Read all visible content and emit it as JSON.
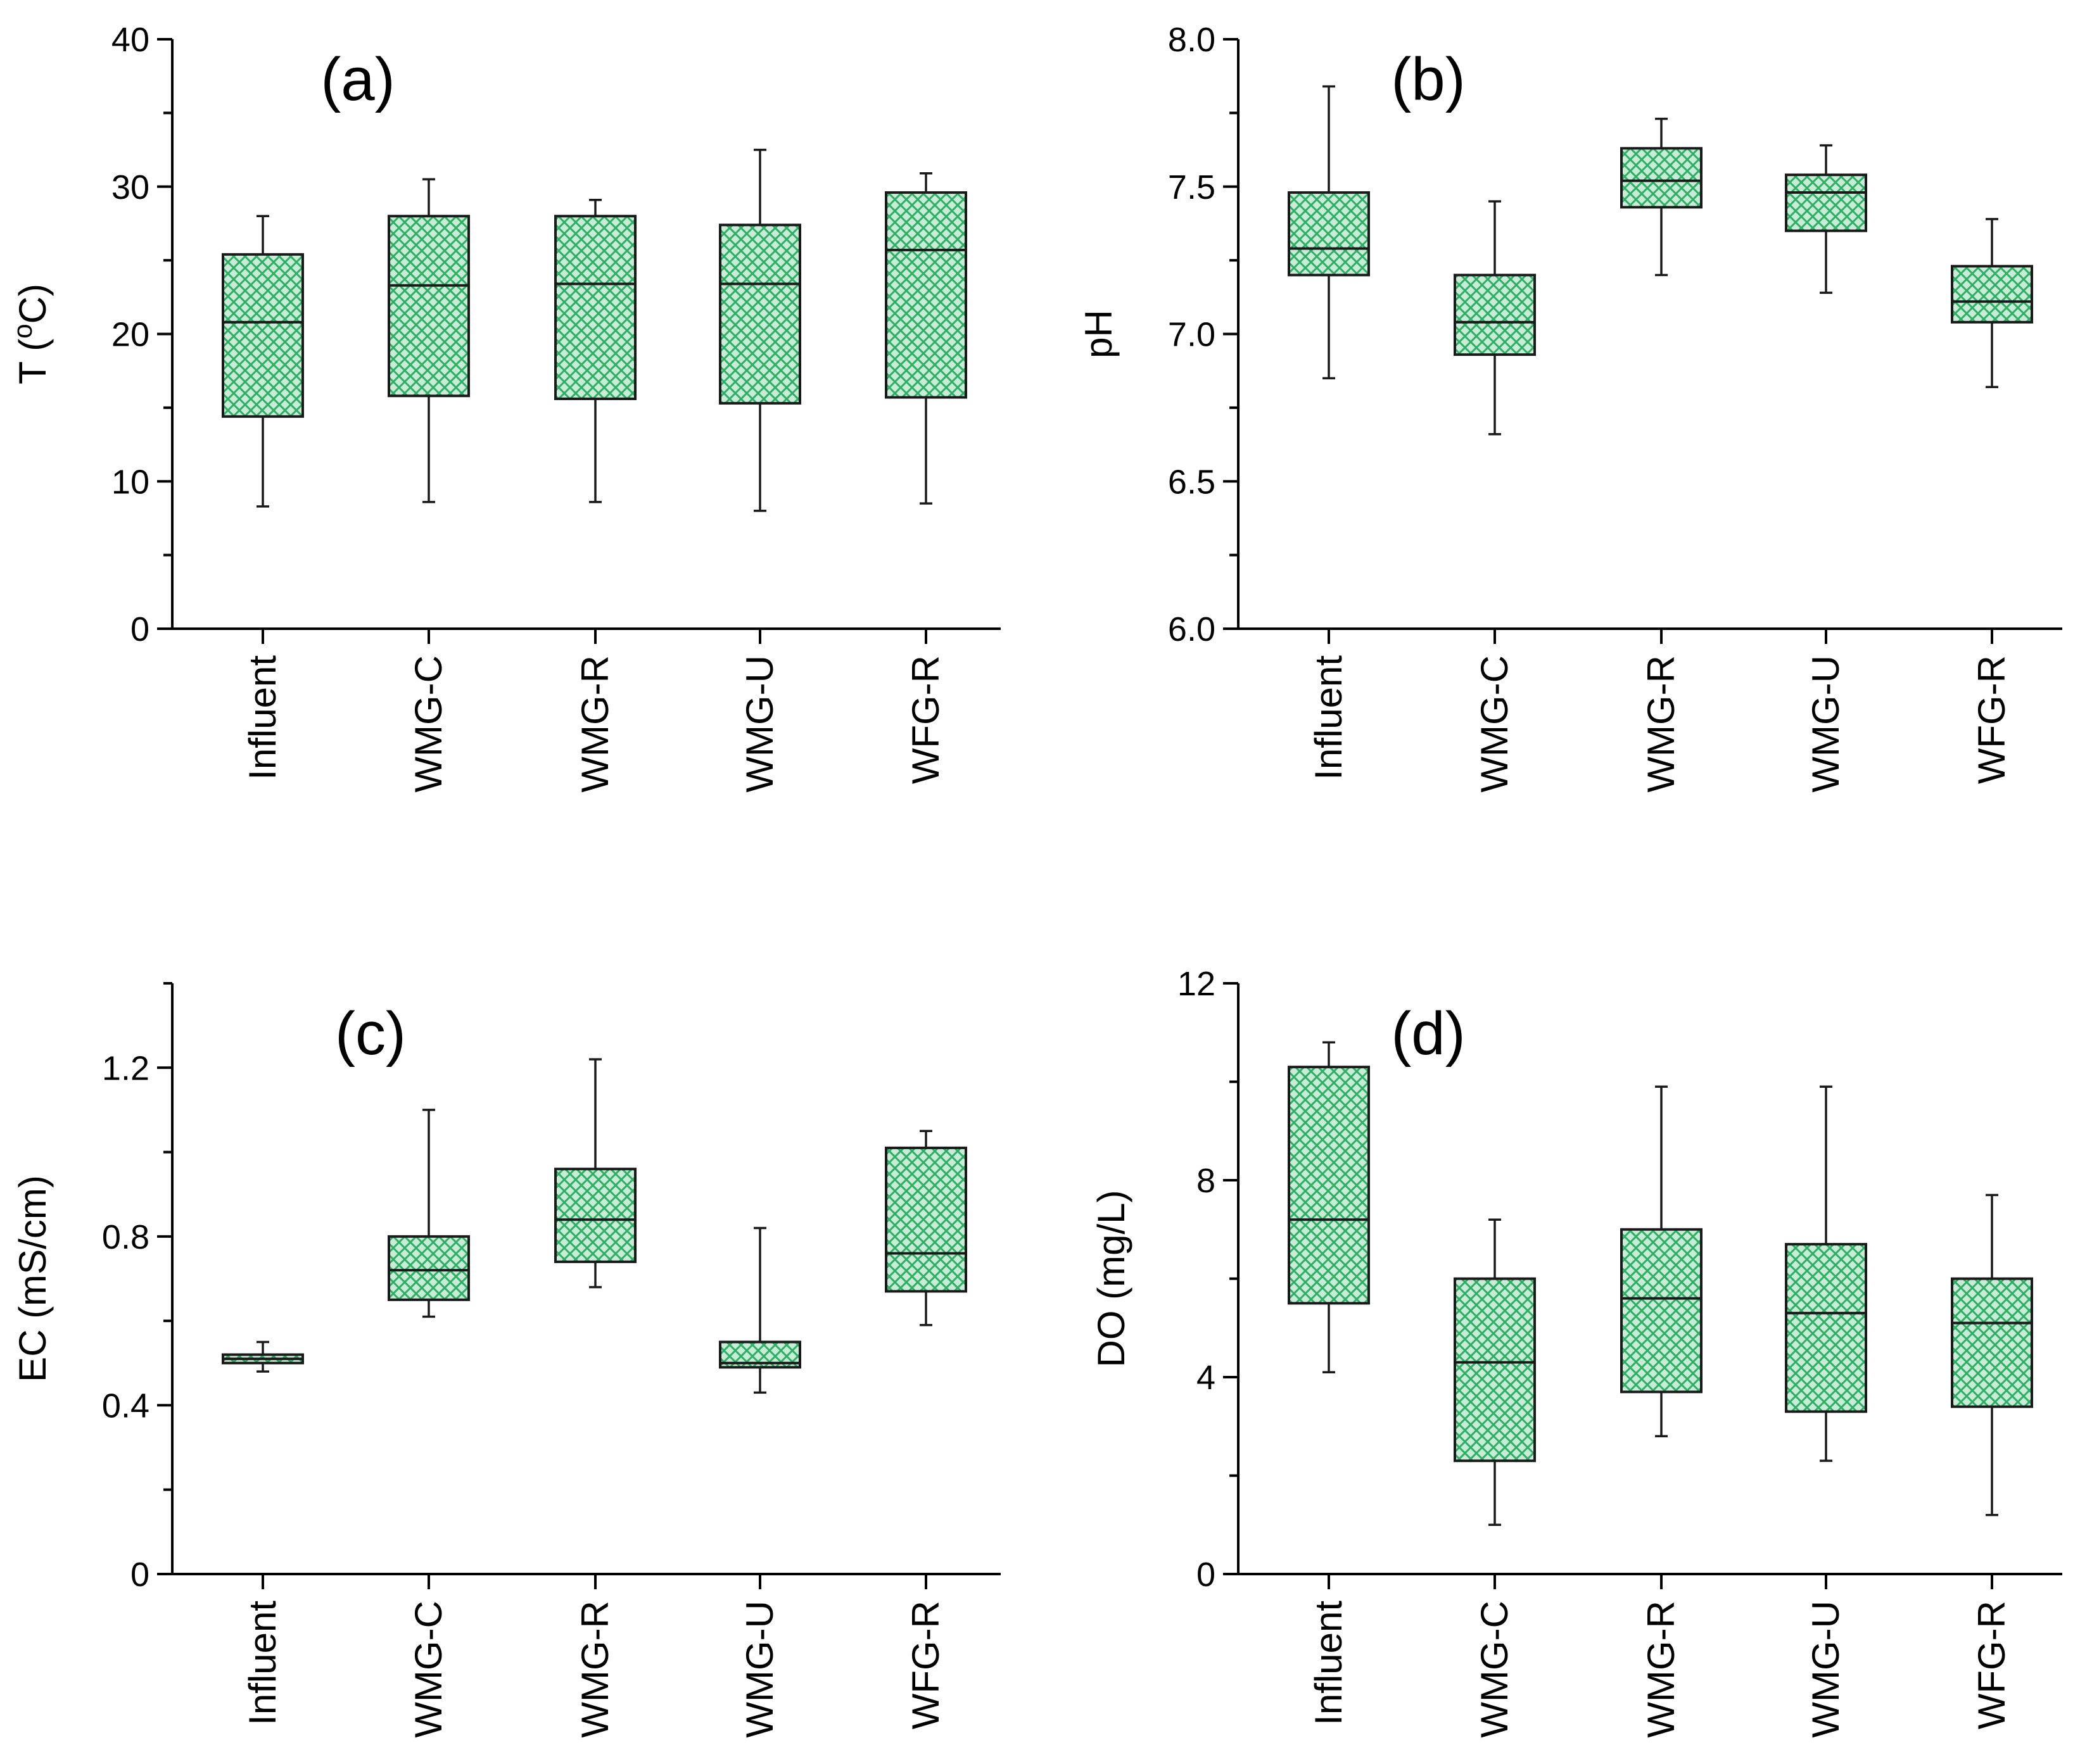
{
  "figure": {
    "box_fill_color": "#c8ecd6",
    "hatch_color": "#2fae66",
    "line_color": "#1a1a1a"
  },
  "chart_data": [
    {
      "type": "box",
      "panel": "a",
      "title": "(a)",
      "ylabel": "T (oC)",
      "ylabel_base": "T (",
      "ylabel_sup": "o",
      "ylabel_tail": "C)",
      "ylim": [
        0,
        40
      ],
      "yticks": [
        0,
        10,
        20,
        30,
        40
      ],
      "ytick_labels": [
        "0",
        "10",
        "20",
        "30",
        "40"
      ],
      "minor_step": 5,
      "categories": [
        "Influent",
        "WMG-C",
        "WMG-R",
        "WMG-U",
        "WFG-R"
      ],
      "boxes": [
        {
          "min": 8.3,
          "q1": 14.4,
          "median": 20.8,
          "q3": 25.4,
          "max": 28.0
        },
        {
          "min": 8.6,
          "q1": 15.8,
          "median": 23.3,
          "q3": 28.0,
          "max": 30.5
        },
        {
          "min": 8.6,
          "q1": 15.6,
          "median": 23.4,
          "q3": 28.0,
          "max": 29.1
        },
        {
          "min": 8.0,
          "q1": 15.3,
          "median": 23.4,
          "q3": 27.4,
          "max": 32.5
        },
        {
          "min": 8.5,
          "q1": 15.7,
          "median": 25.7,
          "q3": 29.6,
          "max": 30.9
        }
      ]
    },
    {
      "type": "box",
      "panel": "b",
      "title": "(b)",
      "ylabel": "pH",
      "ylabel_base": "pH",
      "ylabel_sup": "",
      "ylabel_tail": "",
      "ylim": [
        6.0,
        8.0
      ],
      "yticks": [
        6.0,
        6.5,
        7.0,
        7.5,
        8.0
      ],
      "ytick_labels": [
        "6.0",
        "6.5",
        "7.0",
        "7.5",
        "8.0"
      ],
      "minor_step": 0.25,
      "categories": [
        "Influent",
        "WMG-C",
        "WMG-R",
        "WMG-U",
        "WFG-R"
      ],
      "boxes": [
        {
          "min": 6.85,
          "q1": 7.2,
          "median": 7.29,
          "q3": 7.48,
          "max": 7.84
        },
        {
          "min": 6.66,
          "q1": 6.93,
          "median": 7.04,
          "q3": 7.2,
          "max": 7.45
        },
        {
          "min": 7.2,
          "q1": 7.43,
          "median": 7.52,
          "q3": 7.63,
          "max": 7.73
        },
        {
          "min": 7.14,
          "q1": 7.35,
          "median": 7.48,
          "q3": 7.54,
          "max": 7.64
        },
        {
          "min": 6.82,
          "q1": 7.04,
          "median": 7.11,
          "q3": 7.23,
          "max": 7.39
        }
      ]
    },
    {
      "type": "box",
      "panel": "c",
      "title": "(c)",
      "ylabel": "EC (mS/cm)",
      "ylabel_base": "EC (mS/cm)",
      "ylabel_sup": "",
      "ylabel_tail": "",
      "ylim": [
        0,
        1.4
      ],
      "yticks": [
        0,
        0.4,
        0.8,
        1.2
      ],
      "ytick_labels": [
        "0",
        "0.4",
        "0.8",
        "1.2"
      ],
      "minor_step": 0.2,
      "categories": [
        "Influent",
        "WMG-C",
        "WMG-R",
        "WMG-U",
        "WFG-R"
      ],
      "boxes": [
        {
          "min": 0.48,
          "q1": 0.5,
          "median": 0.51,
          "q3": 0.52,
          "max": 0.55
        },
        {
          "min": 0.61,
          "q1": 0.65,
          "median": 0.72,
          "q3": 0.8,
          "max": 1.1
        },
        {
          "min": 0.68,
          "q1": 0.74,
          "median": 0.84,
          "q3": 0.96,
          "max": 1.22
        },
        {
          "min": 0.43,
          "q1": 0.49,
          "median": 0.5,
          "q3": 0.55,
          "max": 0.82
        },
        {
          "min": 0.59,
          "q1": 0.67,
          "median": 0.76,
          "q3": 1.01,
          "max": 1.05
        }
      ]
    },
    {
      "type": "box",
      "panel": "d",
      "title": "(d)",
      "ylabel": "DO (mg/L)",
      "ylabel_base": "DO (mg/L)",
      "ylabel_sup": "",
      "ylabel_tail": "",
      "ylim": [
        0,
        12
      ],
      "yticks": [
        0,
        4,
        8,
        12
      ],
      "ytick_labels": [
        "0",
        "4",
        "8",
        "12"
      ],
      "minor_step": 2,
      "categories": [
        "Influent",
        "WMG-C",
        "WMG-R",
        "WMG-U",
        "WFG-R"
      ],
      "boxes": [
        {
          "min": 4.1,
          "q1": 5.5,
          "median": 7.2,
          "q3": 10.3,
          "max": 10.8
        },
        {
          "min": 1.0,
          "q1": 2.3,
          "median": 4.3,
          "q3": 6.0,
          "max": 7.2
        },
        {
          "min": 2.8,
          "q1": 3.7,
          "median": 5.6,
          "q3": 7.0,
          "max": 9.9
        },
        {
          "min": 2.3,
          "q1": 3.3,
          "median": 5.3,
          "q3": 6.7,
          "max": 9.9
        },
        {
          "min": 1.2,
          "q1": 3.4,
          "median": 5.1,
          "q3": 6.0,
          "max": 7.7
        }
      ]
    }
  ]
}
